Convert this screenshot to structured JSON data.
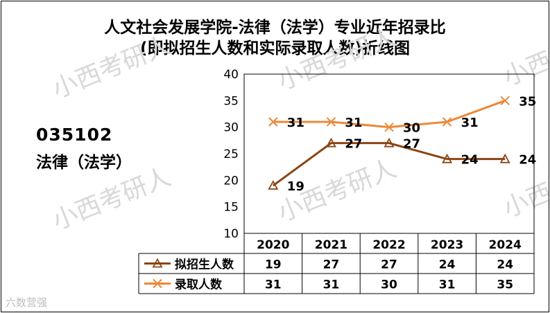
{
  "title_line1": "人文社会发展学院-法律（法学）专业近年招录比",
  "title_line2": "(即拟招生人数和实际录取人数)折线图",
  "program_code": "035102",
  "program_name": "法律（法学）",
  "watermark": "小西考研人",
  "corner_watermark": "六数营强",
  "chart_data": {
    "type": "line",
    "categories": [
      "2020",
      "2021",
      "2022",
      "2023",
      "2024"
    ],
    "series": [
      {
        "name": "拟招生人数",
        "values": [
          19,
          27,
          27,
          24,
          24
        ],
        "color": "#8B4513",
        "marker": "triangle"
      },
      {
        "name": "录取人数",
        "values": [
          31,
          31,
          30,
          31,
          35
        ],
        "color": "#ED8836",
        "marker": "x"
      }
    ],
    "ylim": [
      10,
      40
    ],
    "yticks": [
      10,
      15,
      20,
      25,
      30,
      35,
      40
    ],
    "grid": false,
    "legend": "data-table-below"
  }
}
